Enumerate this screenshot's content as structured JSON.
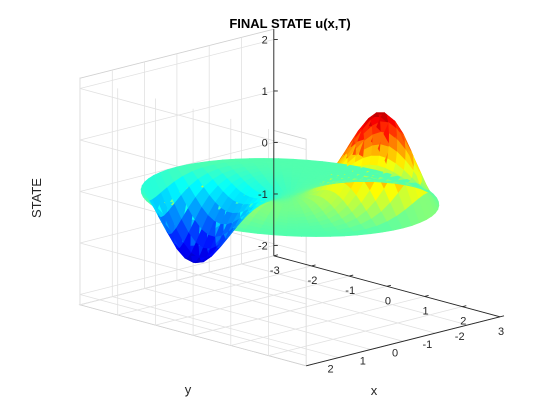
{
  "chart_data": {
    "type": "surface",
    "title": "FINAL STATE u(x,T)",
    "xlabel": "x",
    "ylabel": "y",
    "zlabel": "STATE",
    "xlim": [
      -3,
      3
    ],
    "ylim": [
      -3,
      3
    ],
    "zlim": [
      -2.2,
      2.2
    ],
    "xticks": [
      -3,
      -2,
      -1,
      0,
      1,
      2,
      3
    ],
    "yticks": [
      -2,
      -1,
      0,
      1,
      2
    ],
    "zticks": [
      -2,
      -1,
      0,
      1,
      2
    ],
    "xtick_labels": [
      "-3",
      "-2",
      "-1",
      "0",
      "1",
      "2",
      "3"
    ],
    "ytick_labels": [
      "-2",
      "-1",
      "0",
      "1",
      "2"
    ],
    "ztick_labels": [
      "-2",
      "-1",
      "0",
      "1",
      "2"
    ],
    "domain": "disk of radius 3 centered at origin",
    "boundary_value": 0,
    "grid": true,
    "colormap": "jet",
    "features": [
      {
        "x": 2.3,
        "y": -0.9,
        "z": 2.1
      },
      {
        "x": -2.3,
        "y": 1.0,
        "z": -1.75
      },
      {
        "x": -0.5,
        "y": 2.5,
        "z": 0.75
      }
    ]
  }
}
